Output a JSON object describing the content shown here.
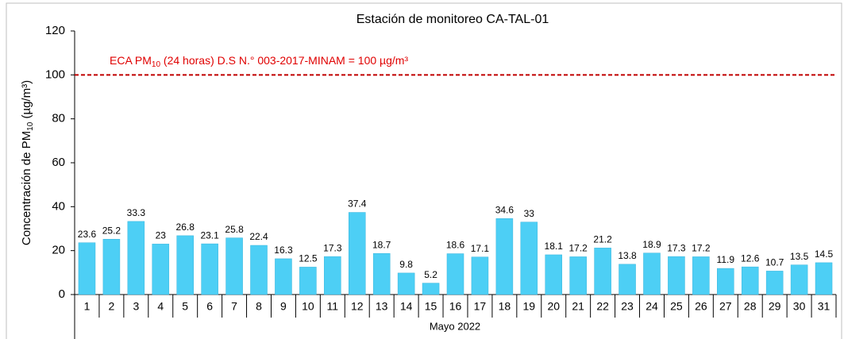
{
  "chart_data": {
    "type": "bar",
    "title": "Estación de monitoreo CA-TAL-01",
    "y_label": {
      "main": "Concentración de PM",
      "sub": "10",
      "unit": " (µg/m³)"
    },
    "x_label": "Mayo 2022",
    "categories": [
      "1",
      "2",
      "3",
      "4",
      "5",
      "6",
      "7",
      "8",
      "9",
      "10",
      "11",
      "12",
      "13",
      "14",
      "15",
      "16",
      "17",
      "18",
      "19",
      "20",
      "21",
      "22",
      "23",
      "24",
      "25",
      "26",
      "27",
      "28",
      "29",
      "30",
      "31"
    ],
    "values": [
      23.6,
      25.2,
      33.3,
      23,
      26.8,
      23.1,
      25.8,
      22.4,
      16.3,
      12.5,
      17.3,
      37.4,
      18.7,
      9.8,
      5.2,
      18.6,
      17.1,
      34.6,
      33,
      18.1,
      17.2,
      21.2,
      13.8,
      18.9,
      17.3,
      17.2,
      11.9,
      12.6,
      10.7,
      13.5,
      14.5
    ],
    "color": "#4dcff5",
    "ylim": [
      0,
      120
    ],
    "yticks": [
      0,
      20,
      40,
      60,
      80,
      100,
      120
    ],
    "reference_line": {
      "value": 100,
      "color": "#c00000",
      "label": {
        "main": "ECA PM",
        "sub": "10",
        "rest": " (24 horas) D.S N.° 003-2017-MINAM = 100 µg/m³"
      }
    }
  }
}
